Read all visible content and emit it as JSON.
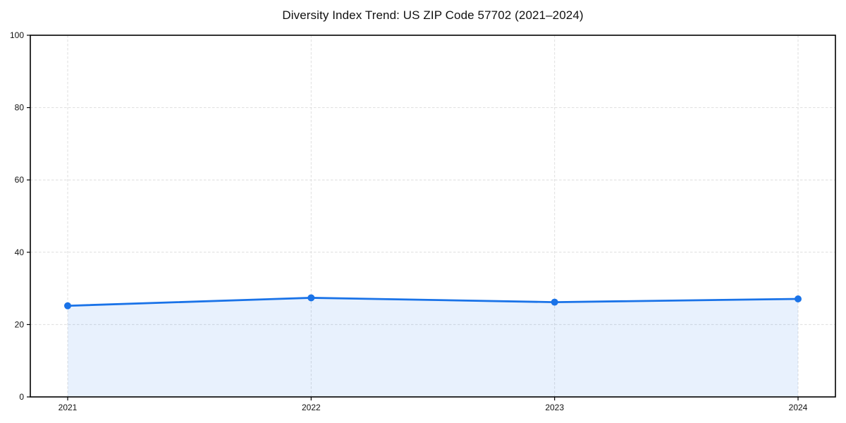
{
  "title": "Diversity Index Trend: US ZIP Code 57702 (2021–2024)",
  "colors": {
    "line": "#1a73e8",
    "marker": "#1a73e8",
    "area_fill": "rgba(26,115,232,0.10)",
    "grid": "#dedede",
    "spine": "#000000",
    "tick_text": "#111111",
    "background": "#ffffff"
  },
  "chart_data": {
    "type": "area",
    "title": "Diversity Index Trend: US ZIP Code 57702 (2021–2024)",
    "x": [
      "2021",
      "2022",
      "2023",
      "2024"
    ],
    "series": [
      {
        "name": "Diversity Index",
        "values": [
          25.2,
          27.4,
          26.2,
          27.1
        ]
      }
    ],
    "xlabel": "",
    "ylabel": "",
    "ylim": [
      0,
      100
    ],
    "yticks": [
      0,
      20,
      40,
      60,
      80,
      100
    ],
    "grid": true,
    "grid_style": "dashed",
    "legend": false,
    "marker": "circle",
    "fill_to_zero": true
  }
}
